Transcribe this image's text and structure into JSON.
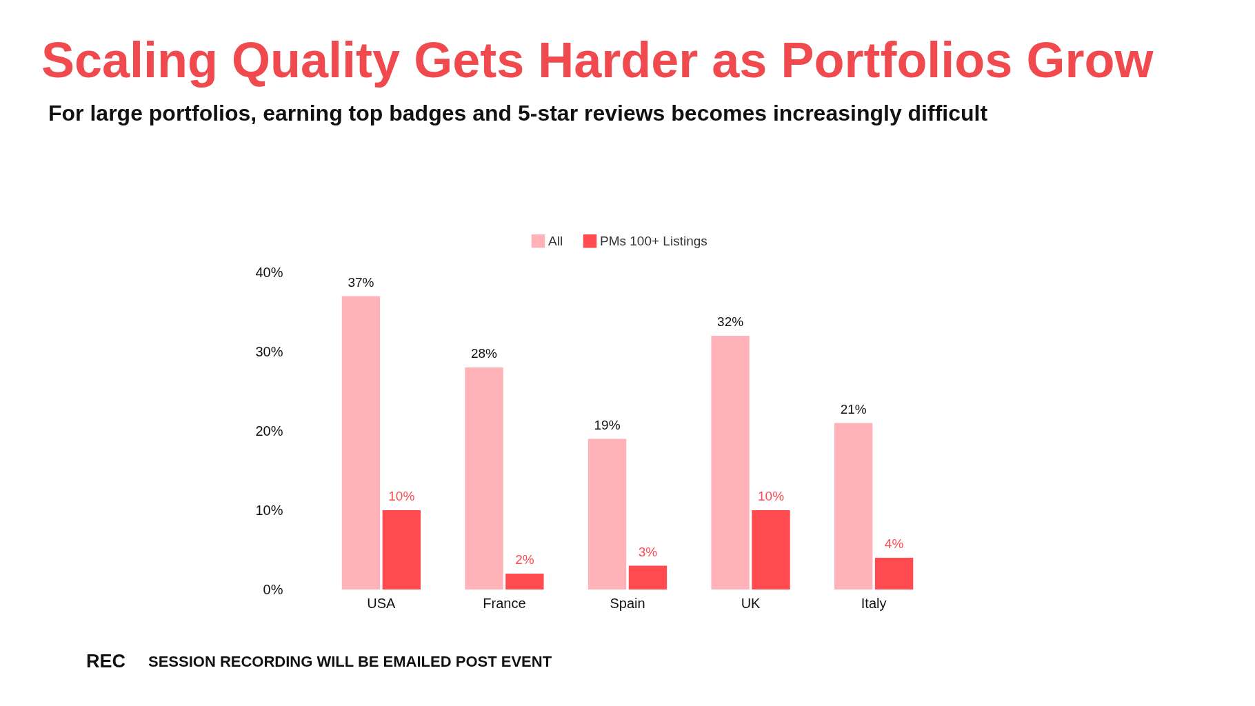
{
  "chart_data": {
    "type": "bar",
    "title": "Scaling Quality Gets Harder as Portfolios Grow",
    "subtitle": "For large portfolios, earning top badges and 5-star reviews becomes increasingly difficult",
    "categories": [
      "USA",
      "France",
      "Spain",
      "UK",
      "Italy"
    ],
    "series": [
      {
        "name": "All",
        "color": "#ffb3b8",
        "values": [
          37,
          28,
          19,
          32,
          21
        ],
        "value_labels": [
          "37%",
          "28%",
          "19%",
          "32%",
          "21%"
        ]
      },
      {
        "name": "PMs 100+ Listings",
        "color": "#ff4a50",
        "values": [
          10,
          2,
          3,
          10,
          4
        ],
        "value_labels": [
          "10%",
          "2%",
          "3%",
          "10%",
          "4%"
        ]
      }
    ],
    "ylim": [
      0,
      40
    ],
    "yticks": [
      {
        "value": 0,
        "label": "0%"
      },
      {
        "value": 10,
        "label": "10%"
      },
      {
        "value": 20,
        "label": "20%"
      },
      {
        "value": 30,
        "label": "30%"
      },
      {
        "value": 40,
        "label": "40%"
      }
    ],
    "grid": false,
    "legend": "top",
    "annotations": [
      "REC",
      "SESSION RECORDING WILL BE EMAILED POST EVENT"
    ]
  }
}
